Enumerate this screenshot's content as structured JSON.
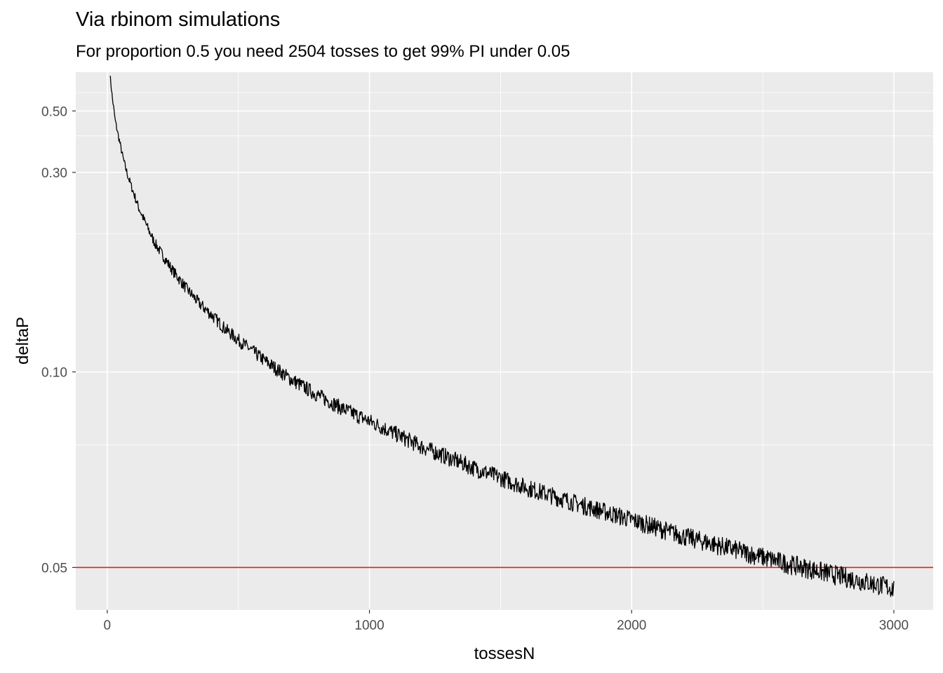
{
  "chart_data": {
    "type": "line",
    "title": "Via rbinom simulations",
    "subtitle": "For proportion 0.5 you need 2504 tosses to get 99% PI under 0.05",
    "xlabel": "tossesN",
    "ylabel": "deltaP",
    "x_scale": "linear",
    "y_scale": "reciprocal-sqrt",
    "xlim": [
      -120,
      3150
    ],
    "ylim": [
      0.0442,
      0.75
    ],
    "x_ticks": [
      0,
      1000,
      2000,
      3000
    ],
    "x_tick_labels": [
      "0",
      "1000",
      "2000",
      "3000"
    ],
    "y_ticks": [
      0.05,
      0.1,
      0.3,
      0.5
    ],
    "y_tick_labels": [
      "0.05",
      "0.10",
      "0.30",
      "0.50"
    ],
    "grid": true,
    "legend": "none",
    "series": [
      {
        "color": "#000000",
        "x": [
          10,
          15,
          20,
          25,
          30,
          40,
          50,
          60,
          70,
          80,
          100,
          120,
          140,
          160,
          180,
          200,
          250,
          300,
          350,
          400,
          450,
          500,
          600,
          700,
          800,
          900,
          1000,
          1200,
          1400,
          1600,
          1800,
          2000,
          2200,
          2400,
          2600,
          2800,
          3000
        ],
        "y": [
          0.74,
          0.64,
          0.56,
          0.51,
          0.46,
          0.41,
          0.37,
          0.335,
          0.31,
          0.29,
          0.26,
          0.235,
          0.218,
          0.203,
          0.19,
          0.181,
          0.162,
          0.148,
          0.137,
          0.129,
          0.121,
          0.115,
          0.105,
          0.097,
          0.091,
          0.086,
          0.082,
          0.0745,
          0.069,
          0.0645,
          0.061,
          0.058,
          0.055,
          0.0527,
          0.0505,
          0.0487,
          0.047
        ]
      }
    ],
    "reference_lines": [
      {
        "axis": "y",
        "value": 0.05,
        "color": "#e41a1c"
      }
    ]
  }
}
